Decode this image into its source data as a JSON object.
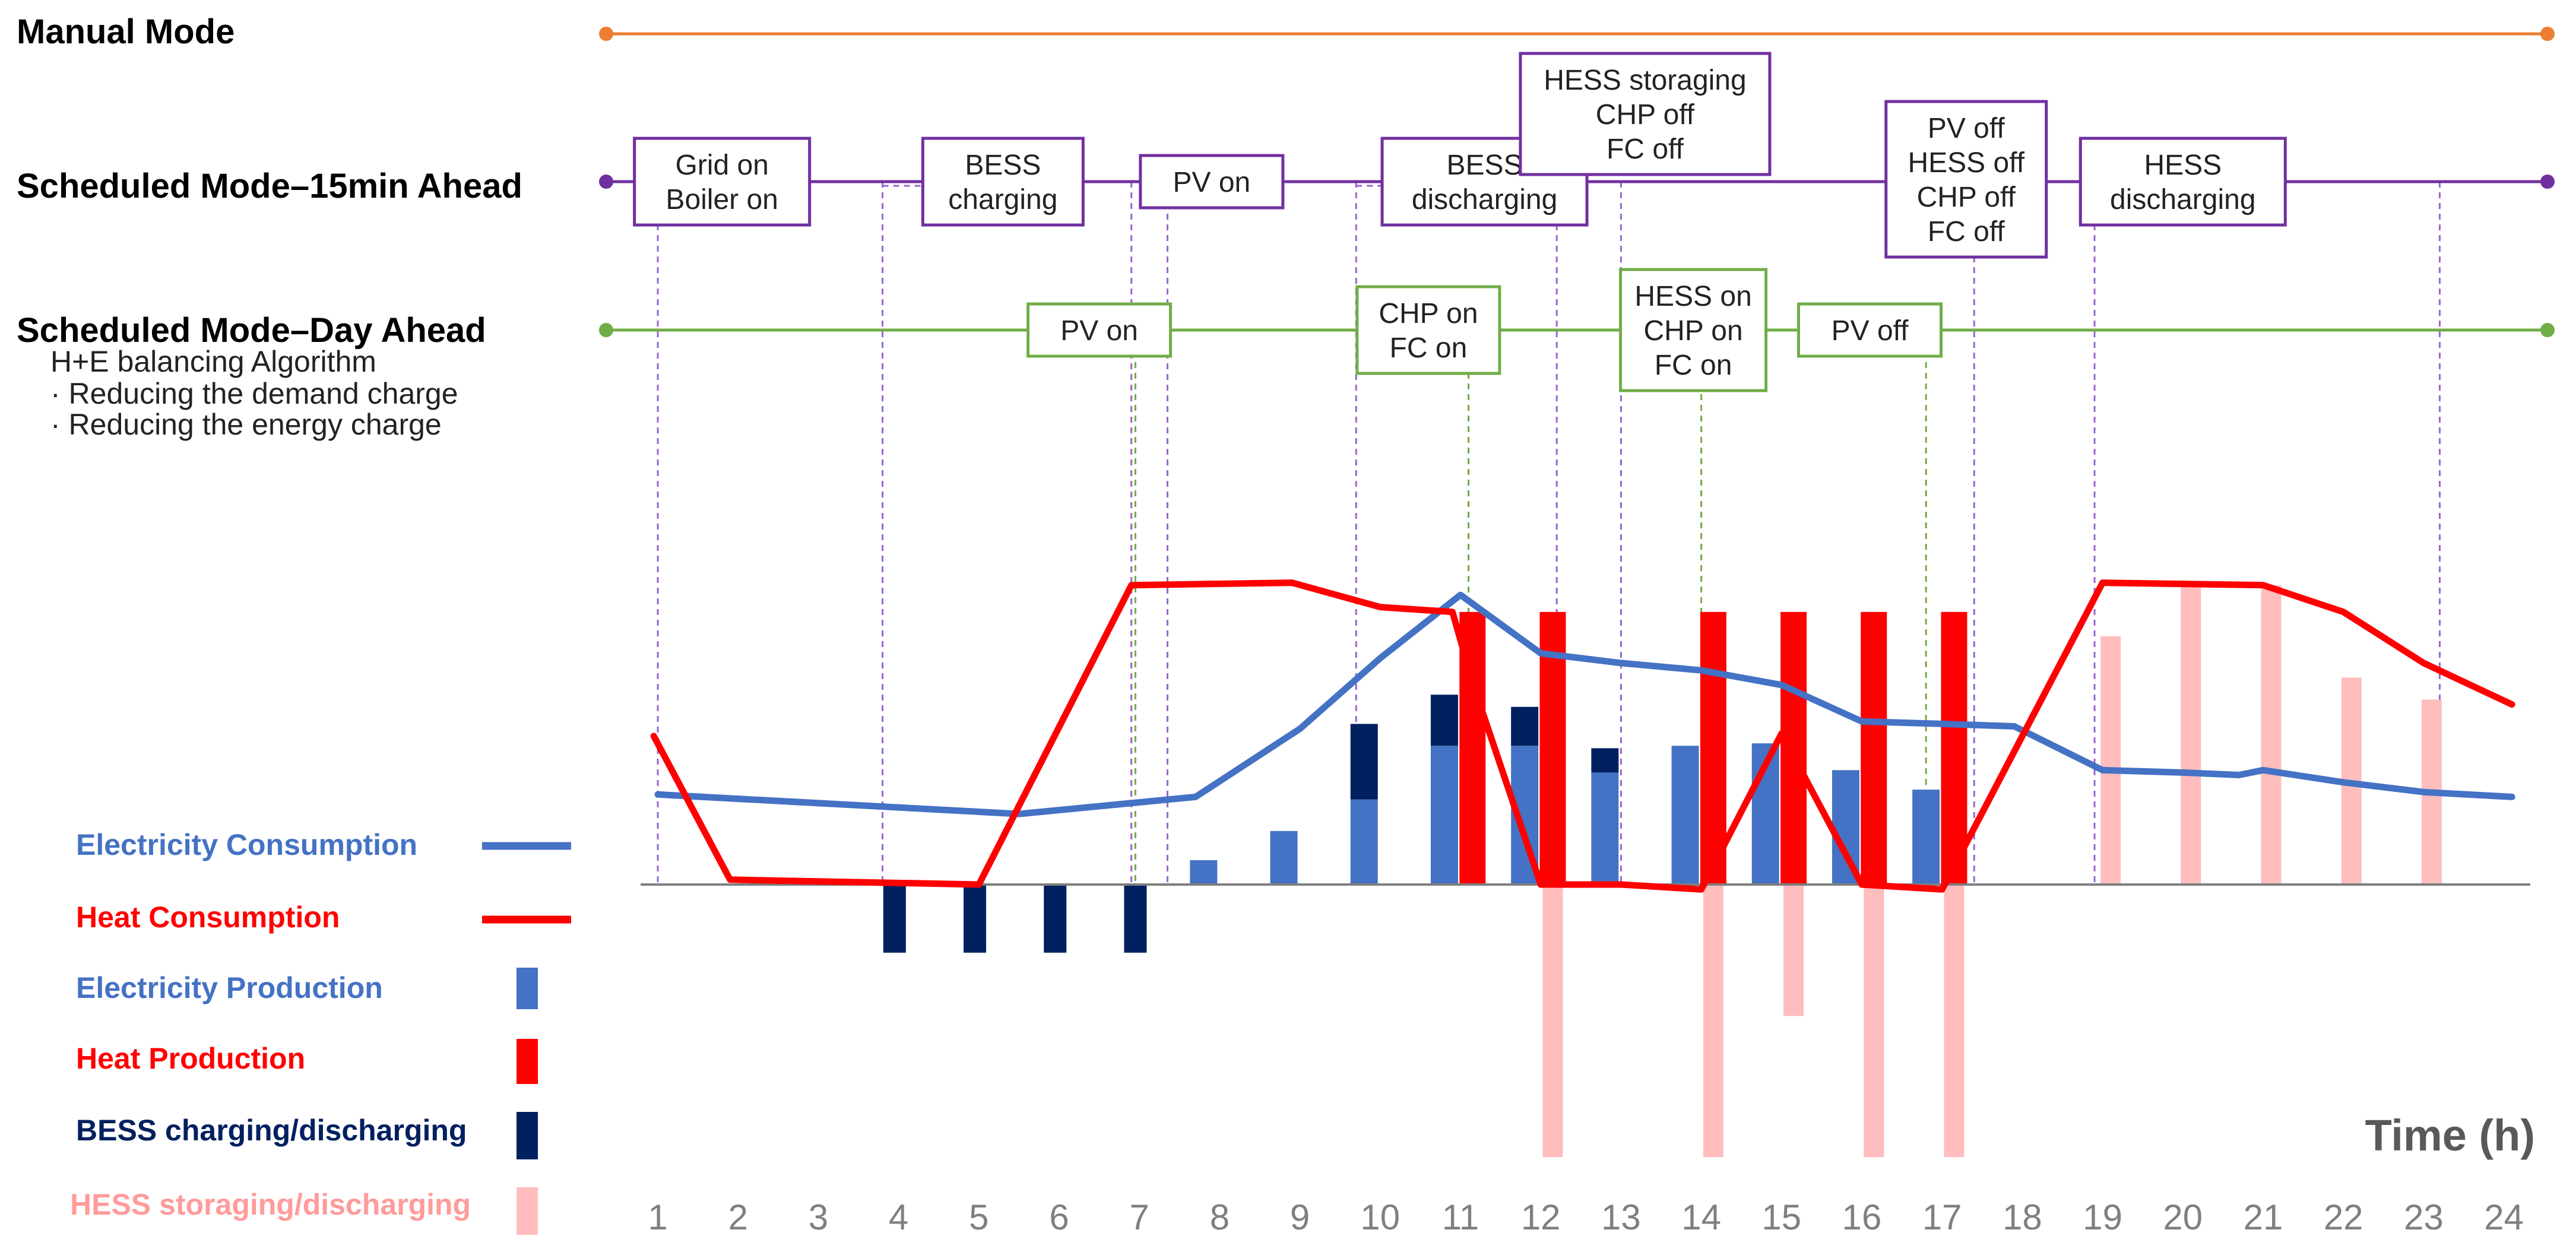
{
  "chart_data": {
    "type": "line",
    "xlabel": "Time (h)",
    "hours": [
      1,
      2,
      3,
      4,
      5,
      6,
      7,
      8,
      9,
      10,
      11,
      12,
      13,
      14,
      15,
      16,
      17,
      18,
      19,
      20,
      21,
      22,
      23,
      24
    ],
    "units": "relative (bars above axis = production/charging, below = discharging/storing)",
    "modes": [
      {
        "key": "manual",
        "label": "Manual Mode",
        "color": "#ed7d31",
        "boxes": []
      },
      {
        "key": "fifteen",
        "label": "Scheduled Mode–15min Ahead",
        "color": "#7030a0",
        "boxes": [
          {
            "lines": [
              "Grid on",
              "Boiler on"
            ],
            "hour": 1.8
          },
          {
            "lines": [
              "BESS",
              "charging"
            ],
            "hour": 5.3
          },
          {
            "lines": [
              "PV on"
            ],
            "hour": 7.9
          },
          {
            "lines": [
              "BESS",
              "discharging"
            ],
            "hour": 11.3
          },
          {
            "lines": [
              "HESS storaging",
              "CHP off",
              "FC off"
            ],
            "hour": 13.3
          },
          {
            "lines": [
              "PV off",
              "HESS off",
              "CHP off",
              "FC off"
            ],
            "hour": 17.3
          },
          {
            "lines": [
              "HESS",
              "discharging"
            ],
            "hour": 20.0
          }
        ]
      },
      {
        "key": "day",
        "label": "Scheduled Mode–Day Ahead",
        "color": "#70ad47",
        "boxes": [
          {
            "lines": [
              "PV on"
            ],
            "hour": 6.5
          },
          {
            "lines": [
              "CHP on",
              "FC on"
            ],
            "hour": 10.6
          },
          {
            "lines": [
              "HESS on",
              "CHP on",
              "FC on"
            ],
            "hour": 13.9
          },
          {
            "lines": [
              "PV off"
            ],
            "hour": 16.1
          }
        ]
      }
    ],
    "algorithm": {
      "title": "H+E balancing Algorithm",
      "items": [
        "·  Reducing the demand charge",
        "·  Reducing the energy charge"
      ]
    },
    "series": [
      {
        "name": "Electricity Consumption",
        "type": "line",
        "color": "#4472c4",
        "points": [
          [
            1,
            0.37
          ],
          [
            5.5,
            0.29
          ],
          [
            7.7,
            0.36
          ],
          [
            9,
            0.64
          ],
          [
            10,
            0.93
          ],
          [
            11,
            1.19
          ],
          [
            12,
            0.95
          ],
          [
            13,
            0.91
          ],
          [
            14,
            0.88
          ],
          [
            15,
            0.82
          ],
          [
            16,
            0.67
          ],
          [
            17,
            0.66
          ],
          [
            17.9,
            0.65
          ],
          [
            19,
            0.47
          ],
          [
            20,
            0.46
          ],
          [
            20.7,
            0.45
          ],
          [
            21,
            0.47
          ],
          [
            22,
            0.42
          ],
          [
            23,
            0.38
          ],
          [
            24.1,
            0.36
          ]
        ]
      },
      {
        "name": "Heat Consumption",
        "type": "line",
        "color": "#ff0000",
        "points": [
          [
            0.95,
            0.61
          ],
          [
            1.9,
            0.02
          ],
          [
            5,
            0.0
          ],
          [
            6.9,
            1.23
          ],
          [
            8.9,
            1.24
          ],
          [
            10,
            1.14
          ],
          [
            10.9,
            1.12
          ],
          [
            11.15,
            0.83
          ],
          [
            12,
            0.0
          ],
          [
            13,
            0.0
          ],
          [
            14,
            -0.02
          ],
          [
            15,
            0.62
          ],
          [
            16,
            0.0
          ],
          [
            17,
            -0.02
          ],
          [
            19,
            1.24
          ],
          [
            21,
            1.23
          ],
          [
            22,
            1.12
          ],
          [
            23,
            0.91
          ],
          [
            24.1,
            0.74
          ]
        ]
      },
      {
        "name": "Electricity Production",
        "type": "bar",
        "color": "#4472c4",
        "bars": [
          [
            7.8,
            0.1
          ],
          [
            8.8,
            0.22
          ],
          [
            9.8,
            0.35
          ],
          [
            10.8,
            0.57
          ],
          [
            11.8,
            0.57
          ],
          [
            12.8,
            0.46
          ],
          [
            13.8,
            0.57
          ],
          [
            14.8,
            0.58
          ],
          [
            15.8,
            0.47
          ],
          [
            16.8,
            0.39
          ]
        ]
      },
      {
        "name": "BESS charging/discharging",
        "type": "bar",
        "color": "#002060",
        "bars": [
          [
            3.95,
            -0.28
          ],
          [
            4.95,
            -0.28
          ],
          [
            5.95,
            -0.28
          ],
          [
            6.95,
            -0.28
          ]
        ],
        "stacked": [
          [
            9.8,
            0.35,
            0.31
          ],
          [
            10.8,
            0.57,
            0.21
          ],
          [
            11.8,
            0.57,
            0.16
          ],
          [
            12.8,
            0.46,
            0.1
          ]
        ]
      },
      {
        "name": "Heat Production",
        "type": "bar",
        "color": "#ff0000",
        "bars": [
          [
            11.15,
            1.12
          ],
          [
            12.15,
            1.12
          ],
          [
            14.15,
            1.12
          ],
          [
            15.15,
            1.12
          ],
          [
            16.15,
            1.12
          ],
          [
            17.15,
            1.12
          ]
        ]
      },
      {
        "name": "HESS storaging/discharging",
        "type": "bar",
        "color": "#ffbdbd",
        "bars": [
          [
            12.15,
            -1.12
          ],
          [
            14.15,
            -1.12
          ],
          [
            15.15,
            -0.54
          ],
          [
            16.15,
            -1.12
          ],
          [
            17.15,
            -1.12
          ],
          [
            19.1,
            1.02
          ],
          [
            20.1,
            1.24
          ],
          [
            21.1,
            1.23
          ],
          [
            22.1,
            0.85
          ],
          [
            23.1,
            0.76
          ]
        ]
      }
    ]
  }
}
